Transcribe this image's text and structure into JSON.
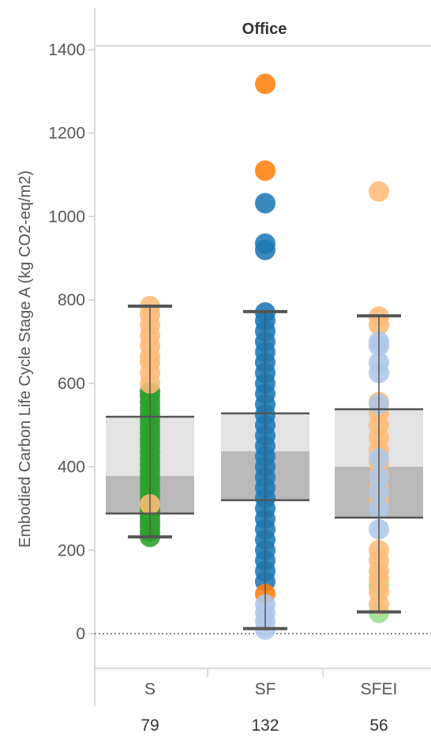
{
  "chart_data": {
    "type": "boxplot-with-points",
    "panel_title": "Office",
    "ylabel": "Embodied Carbon Life Cycle Stage A (kg CO2-eq/m2)",
    "ylim": [
      -90,
      1460
    ],
    "yticks": [
      0,
      200,
      400,
      600,
      800,
      1000,
      1200,
      1400
    ],
    "reference_line": 0,
    "categories": [
      "S",
      "SF",
      "SFEI"
    ],
    "counts": [
      "79",
      "132",
      "56"
    ],
    "boxes": [
      {
        "category": "S",
        "min": 232,
        "q1": 288,
        "median": 378,
        "q3": 520,
        "max": 785
      },
      {
        "category": "SF",
        "min": 12,
        "q1": 320,
        "median": 437,
        "q3": 528,
        "max": 772
      },
      {
        "category": "SFEI",
        "min": 52,
        "q1": 278,
        "median": 400,
        "q3": 538,
        "max": 762
      }
    ],
    "colors": {
      "green": "#2ca02c",
      "light_green": "#98df8a",
      "orange": "#ff7f0e",
      "light_orange": "#ffbb78",
      "blue": "#1f77b4",
      "light_blue": "#aec7e8",
      "box_upper": "#e3e3e3",
      "box_lower": "#b9b9b9",
      "whisker": "#555555"
    },
    "points": [
      {
        "category": "S",
        "color": "green",
        "values": [
          232,
          245,
          258,
          270,
          282,
          292,
          300,
          315,
          330,
          345,
          360,
          375,
          390,
          405,
          420,
          435,
          450,
          465,
          480,
          495,
          510,
          525,
          540,
          555,
          570,
          580
        ]
      },
      {
        "category": "S",
        "color": "light_orange",
        "values": [
          310,
          600,
          625,
          650,
          665,
          690,
          715,
          740,
          765,
          785
        ]
      },
      {
        "category": "SF",
        "color": "blue",
        "values": [
          125,
          150,
          175,
          200,
          225,
          250,
          275,
          300,
          325,
          350,
          375,
          400,
          425,
          450,
          475,
          500,
          525,
          550,
          575,
          600,
          625,
          650,
          675,
          700,
          725,
          750,
          770,
          920,
          935,
          1032
        ]
      },
      {
        "category": "SF",
        "color": "orange",
        "values": [
          95,
          1110,
          1318
        ]
      },
      {
        "category": "SF",
        "color": "light_blue",
        "values": [
          10,
          30,
          50,
          70
        ]
      },
      {
        "category": "SFEI",
        "color": "light_green",
        "values": [
          50,
          115
        ]
      },
      {
        "category": "SFEI",
        "color": "light_orange",
        "values": [
          70,
          100,
          130,
          150,
          175,
          200,
          320,
          350,
          380,
          410,
          440,
          470,
          500,
          530,
          555,
          740,
          760,
          1060
        ]
      },
      {
        "category": "SFEI",
        "color": "light_blue",
        "values": [
          250,
          300,
          340,
          375,
          420,
          550,
          625,
          650,
          690,
          700
        ]
      }
    ]
  }
}
